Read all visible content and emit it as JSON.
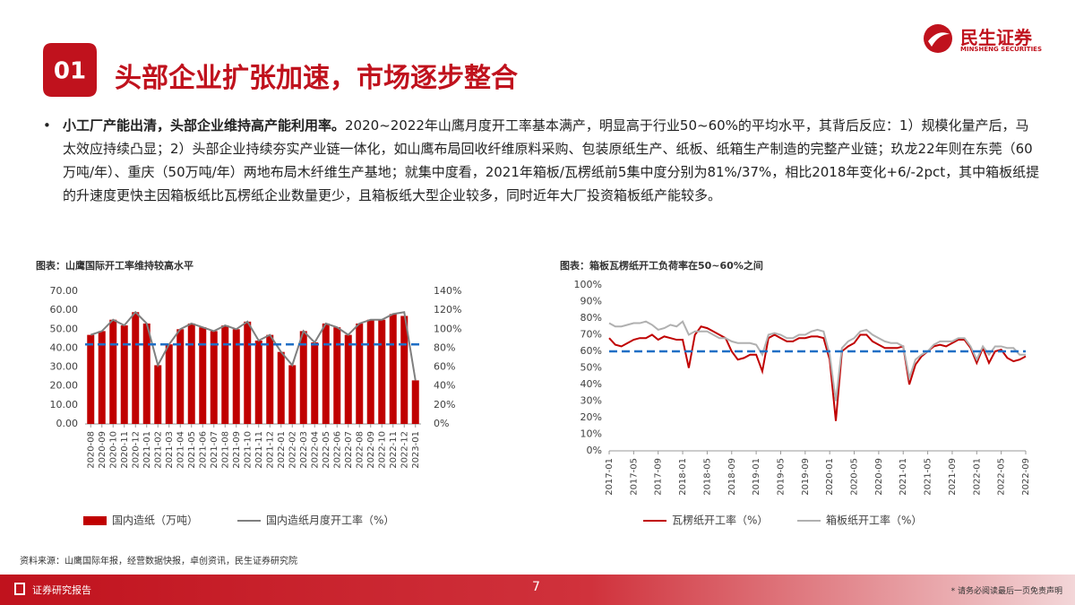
{
  "header": {
    "number": "01",
    "title": "头部企业扩张加速，市场逐步整合",
    "logo": "民生证券",
    "logo_en": "MINSHENG SECURITIES"
  },
  "bullet": {
    "lead": "小工厂产能出清，头部企业维持高产能利用率。",
    "text": "2020~2022年山鹰月度开工率基本满产，明显高于行业50~60%的平均水平，其背后反应：1）规模化量产后，马太效应持续凸显；2）头部企业持续夯实产业链一体化，如山鹰布局回收纤维原料采购、包装原纸生产、纸板、纸箱生产制造的完整产业链；玖龙22年则在东莞（60万吨/年）、重庆（50万吨/年）两地布局木纤维生产基地；就集中度看，2021年箱板/瓦楞纸前5集中度分别为81%/37%，相比2018年变化+6/-2pct，其中箱板纸提的升速度更快主因箱板纸比瓦楞纸企业数量更少，且箱板纸大型企业较多，同时近年大厂投资箱板纸产能较多。"
  },
  "chart_data": [
    {
      "type": "combo",
      "title": "图表：山鹰国际开工率维持较高水平",
      "categories": [
        "2020-08",
        "2020-09",
        "2020-10",
        "2020-11",
        "2020-12",
        "2021-01",
        "2021-02",
        "2021-03",
        "2021-04",
        "2021-05",
        "2021-06",
        "2021-07",
        "2021-08",
        "2021-09",
        "2021-10",
        "2021-11",
        "2021-12",
        "2022-01",
        "2022-02",
        "2022-03",
        "2022-04",
        "2022-05",
        "2022-06",
        "2022-07",
        "2022-08",
        "2022-09",
        "2022-10",
        "2022-11",
        "2022-12",
        "2023-01"
      ],
      "series": [
        {
          "name": "国内造纸（万吨）",
          "kind": "bar",
          "color": "#c00000",
          "values": [
            47,
            49,
            55,
            52,
            59,
            53,
            31,
            42,
            50,
            53,
            51,
            49,
            52,
            50,
            54,
            44,
            47,
            38,
            31,
            49,
            43,
            53,
            51,
            47,
            53,
            55,
            55,
            58,
            57,
            23
          ]
        },
        {
          "name": "国内造纸月度开工率（%）",
          "kind": "line",
          "axis": "y2",
          "color": "#7f7f7f",
          "values": [
            94,
            98,
            110,
            104,
            118,
            106,
            62,
            84,
            100,
            106,
            102,
            98,
            104,
            100,
            108,
            88,
            94,
            76,
            62,
            98,
            86,
            106,
            102,
            94,
            106,
            110,
            110,
            116,
            118,
            46
          ]
        }
      ],
      "ylim": [
        0,
        70
      ],
      "yticks": [
        {
          "value": 0,
          "label": "0.00"
        },
        {
          "value": 10,
          "label": "10.00"
        },
        {
          "value": 20,
          "label": "20.00"
        },
        {
          "value": 30,
          "label": "30.00"
        },
        {
          "value": 40,
          "label": "40.00"
        },
        {
          "value": 50,
          "label": "50.00"
        },
        {
          "value": 60,
          "label": "60.00"
        },
        {
          "value": 70,
          "label": "70.00"
        }
      ],
      "y2lim": [
        0,
        140
      ],
      "y2ticks": [
        {
          "value": 0,
          "label": "0%"
        },
        {
          "value": 20,
          "label": "20%"
        },
        {
          "value": 40,
          "label": "40%"
        },
        {
          "value": 60,
          "label": "60%"
        },
        {
          "value": 80,
          "label": "80%"
        },
        {
          "value": 100,
          "label": "100%"
        },
        {
          "value": 120,
          "label": "120%"
        },
        {
          "value": 140,
          "label": "140%"
        }
      ],
      "reference_line": {
        "value": 42,
        "color": "#1f6fc5"
      }
    },
    {
      "type": "line",
      "title": "图表：箱板瓦楞纸开工负荷率在50~60%之间",
      "categories": [
        "2017-01",
        null,
        null,
        null,
        "2017-05",
        null,
        null,
        null,
        "2017-09",
        null,
        null,
        null,
        "2018-01",
        null,
        null,
        null,
        "2018-05",
        null,
        null,
        null,
        "2018-09",
        null,
        null,
        null,
        "2019-01",
        null,
        null,
        null,
        "2019-05",
        null,
        null,
        null,
        "2019-09",
        null,
        null,
        null,
        "2020-01",
        null,
        null,
        null,
        "2020-05",
        null,
        null,
        null,
        "2020-09",
        null,
        null,
        null,
        "2021-01",
        null,
        null,
        null,
        "2021-05",
        null,
        null,
        null,
        "2021-09",
        null,
        null,
        null,
        "2022-01",
        null,
        null,
        null,
        "2022-05",
        null,
        null,
        null,
        "2022-09"
      ],
      "series": [
        {
          "name": "瓦楞纸开工率（%）",
          "color": "#c00000",
          "values": [
            68,
            64,
            63,
            65,
            67,
            68,
            68,
            70,
            67,
            69,
            68,
            67,
            67,
            50,
            70,
            75,
            74,
            72,
            70,
            68,
            60,
            55,
            56,
            58,
            58,
            48,
            68,
            70,
            68,
            66,
            66,
            68,
            68,
            69,
            69,
            68,
            55,
            18,
            60,
            63,
            65,
            70,
            70,
            66,
            64,
            62,
            62,
            62,
            63,
            40,
            52,
            57,
            60,
            63,
            64,
            63,
            65,
            67,
            67,
            62,
            53,
            62,
            53,
            60,
            61,
            56,
            54,
            55,
            57
          ]
        },
        {
          "name": "箱板纸开工率（%）",
          "color": "#b0b0b0",
          "values": [
            77,
            75,
            75,
            76,
            77,
            77,
            78,
            76,
            73,
            74,
            76,
            75,
            78,
            70,
            72,
            72,
            72,
            70,
            68,
            68,
            66,
            65,
            65,
            65,
            64,
            58,
            70,
            71,
            70,
            68,
            68,
            70,
            70,
            72,
            73,
            72,
            58,
            30,
            62,
            66,
            68,
            72,
            73,
            70,
            68,
            66,
            65,
            65,
            63,
            44,
            55,
            58,
            60,
            64,
            66,
            66,
            66,
            68,
            68,
            63,
            55,
            63,
            58,
            63,
            63,
            62,
            62,
            58,
            58
          ]
        }
      ],
      "ylim": [
        0,
        100
      ],
      "yticks": [
        {
          "value": 0,
          "label": "0%"
        },
        {
          "value": 10,
          "label": "10%"
        },
        {
          "value": 20,
          "label": "20%"
        },
        {
          "value": 30,
          "label": "30%"
        },
        {
          "value": 40,
          "label": "40%"
        },
        {
          "value": 50,
          "label": "50%"
        },
        {
          "value": 60,
          "label": "60%"
        },
        {
          "value": 70,
          "label": "70%"
        },
        {
          "value": 80,
          "label": "80%"
        },
        {
          "value": 90,
          "label": "90%"
        },
        {
          "value": 100,
          "label": "100%"
        }
      ],
      "reference_line": {
        "value": 60,
        "color": "#1f6fc5"
      }
    }
  ],
  "source": "资料来源：山鹰国际年报，经营数据快报，卓创资讯，民生证券研究院",
  "footer": {
    "label": "证券研究报告",
    "page": "7",
    "disclaimer": "* 请务必阅读最后一页免责声明"
  }
}
